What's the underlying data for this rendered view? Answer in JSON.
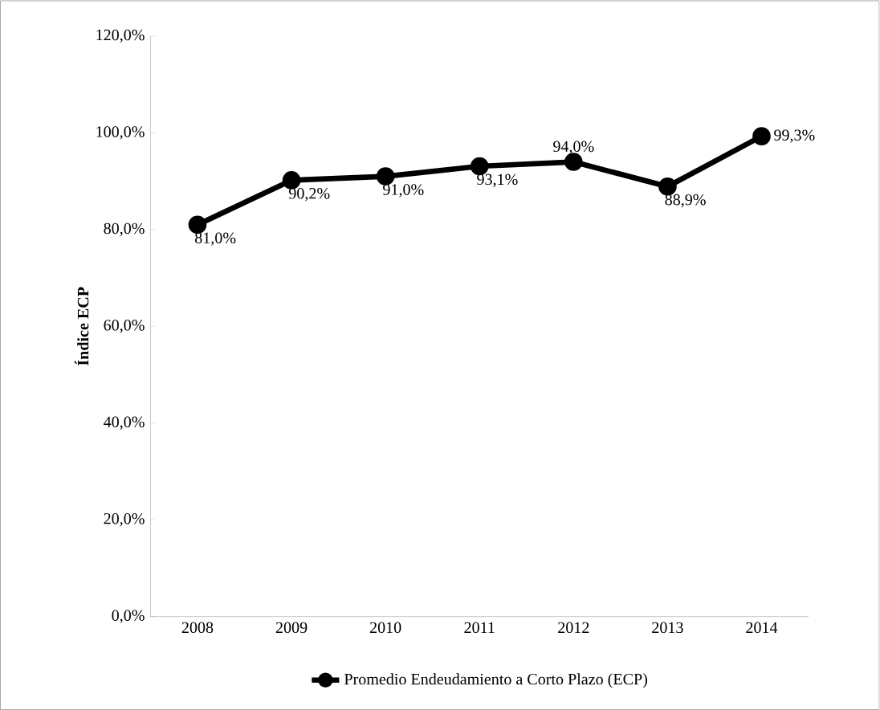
{
  "chart_data": {
    "type": "line",
    "ylabel": "Índice ECP",
    "categories": [
      "2008",
      "2009",
      "2010",
      "2011",
      "2012",
      "2013",
      "2014"
    ],
    "series": [
      {
        "name": "Promedio Endeudamiento a Corto Plazo (ECP)",
        "color": "#000000",
        "values": [
          81.0,
          90.2,
          91.0,
          93.1,
          94.0,
          88.9,
          99.3
        ],
        "value_labels": [
          "81,0%",
          "90,2%",
          "91,0%",
          "93,1%",
          "94,0%",
          "88,9%",
          "99,3%"
        ]
      }
    ],
    "ylim": [
      0,
      120
    ],
    "yticks": [
      {
        "value": 0,
        "label": "0,0%"
      },
      {
        "value": 20,
        "label": "20,0%"
      },
      {
        "value": 40,
        "label": "40,0%"
      },
      {
        "value": 60,
        "label": "60,0%"
      },
      {
        "value": 80,
        "label": "80,0%"
      },
      {
        "value": 100,
        "label": "100,0%"
      },
      {
        "value": 120,
        "label": "120,0%"
      }
    ],
    "grid": false,
    "legend": "bottom",
    "marker": "circle",
    "line_style": "solid"
  }
}
